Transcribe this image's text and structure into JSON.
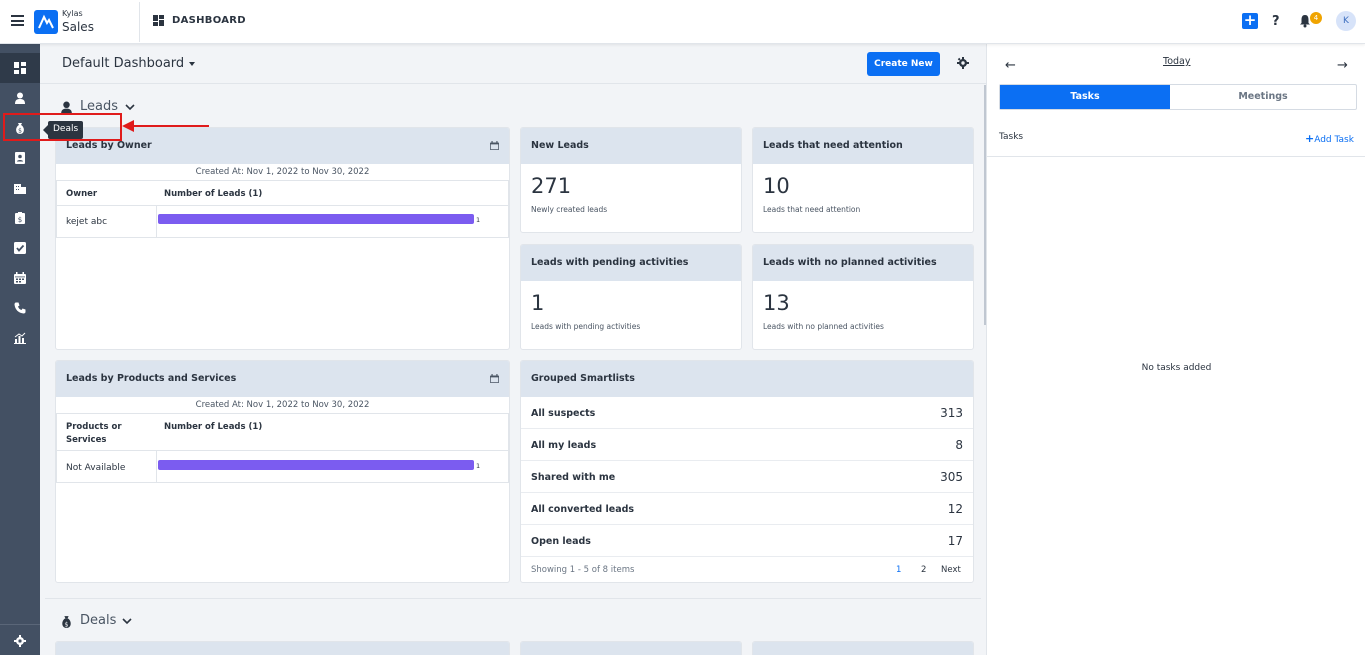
{
  "app": {
    "brand_small": "Kylas",
    "brand_big": "Sales",
    "page_title": "DASHBOARD",
    "notification_count": "4",
    "avatar_initial": "K"
  },
  "sidebar": {
    "items": [
      "dashboard-icon",
      "user-icon",
      "deals-icon",
      "contact-card-icon",
      "company-icon",
      "clipboard-icon",
      "checkbox-icon",
      "calendar-icon",
      "phone-icon",
      "reports-icon"
    ],
    "active_index": 0,
    "tooltip": "Deals"
  },
  "header": {
    "dashboard_name": "Default Dashboard",
    "create_button": "Create New"
  },
  "leads_section": {
    "title": "Leads"
  },
  "leads_by_owner": {
    "title": "Leads by Owner",
    "created_at": "Created At: Nov 1, 2022 to Nov 30, 2022",
    "col1": "Owner",
    "col2": "Number of Leads (1)",
    "rows": [
      {
        "label": "kejet abc",
        "value": "1",
        "fraction": 1.0
      }
    ]
  },
  "stats": [
    {
      "title": "New Leads",
      "value": "271",
      "desc": "Newly created leads"
    },
    {
      "title": "Leads that need attention",
      "value": "10",
      "desc": "Leads that need attention"
    },
    {
      "title": "Leads with pending activities",
      "value": "1",
      "desc": "Leads with pending activities"
    },
    {
      "title": "Leads with no planned activities",
      "value": "13",
      "desc": "Leads with no planned activities"
    }
  ],
  "leads_by_products": {
    "title": "Leads by Products and Services",
    "created_at": "Created At: Nov 1, 2022 to Nov 30, 2022",
    "col1_line1": "Products or",
    "col1_line2": "Services",
    "col2": "Number of Leads (1)",
    "rows": [
      {
        "label": "Not Available",
        "value": "1",
        "fraction": 1.0
      }
    ]
  },
  "smartlists": {
    "title": "Grouped Smartlists",
    "rows": [
      {
        "name": "All suspects",
        "count": "313"
      },
      {
        "name": "All my leads",
        "count": "8"
      },
      {
        "name": "Shared with me",
        "count": "305"
      },
      {
        "name": "All converted leads",
        "count": "12"
      },
      {
        "name": "Open leads",
        "count": "17"
      }
    ],
    "showing": "Showing 1 - 5 of 8 items",
    "page1": "1",
    "page2": "2",
    "next": "Next"
  },
  "deals_section": {
    "title": "Deals"
  },
  "right_panel": {
    "date_label": "Today",
    "tab_tasks": "Tasks",
    "tab_meetings": "Meetings",
    "tasks_label": "Tasks",
    "add_task": "Add Task",
    "empty": "No tasks added"
  },
  "colors": {
    "primary": "#0b6ff3",
    "sidebar": "#435063",
    "bar": "#7b5cf0",
    "card_header": "#dce4ee",
    "annotation": "#e01b1b"
  }
}
